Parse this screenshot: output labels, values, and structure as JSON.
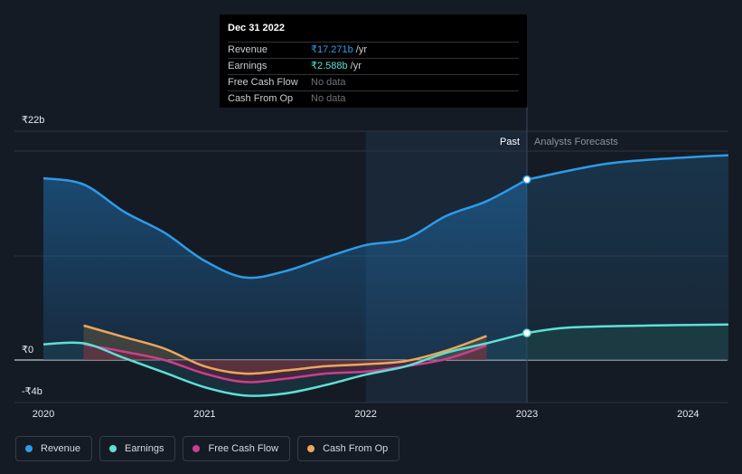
{
  "chart_data": {
    "type": "line",
    "y_unit_prefix": "₹",
    "y_ticks": [
      {
        "value": 22,
        "label": "₹22b"
      },
      {
        "value": 0,
        "label": "₹0"
      },
      {
        "value": -4,
        "label": "-₹4b"
      }
    ],
    "ylim": [
      -4,
      22
    ],
    "xlim": [
      2020,
      2024.25
    ],
    "x_ticks": [
      {
        "value": 2020,
        "label": "2020"
      },
      {
        "value": 2021,
        "label": "2021"
      },
      {
        "value": 2022,
        "label": "2022"
      },
      {
        "value": 2023,
        "label": "2023"
      },
      {
        "value": 2024,
        "label": "2024"
      }
    ],
    "past_label": "Past",
    "forecast_label": "Analysts Forecasts",
    "past_range": [
      2022.0,
      2023.0
    ],
    "divider_x": 2023.0,
    "series": [
      {
        "name": "Revenue",
        "color": "#2d9be8",
        "points": [
          [
            2020.0,
            17.4
          ],
          [
            2020.25,
            16.8
          ],
          [
            2020.5,
            14.2
          ],
          [
            2020.75,
            12.2
          ],
          [
            2021.0,
            9.5
          ],
          [
            2021.25,
            7.9
          ],
          [
            2021.5,
            8.5
          ],
          [
            2021.75,
            9.8
          ],
          [
            2022.0,
            11.0
          ],
          [
            2022.25,
            11.6
          ],
          [
            2022.5,
            13.8
          ],
          [
            2022.75,
            15.2
          ],
          [
            2023.0,
            17.271
          ]
        ],
        "forecast": [
          [
            2023.0,
            17.271
          ],
          [
            2023.5,
            18.8
          ],
          [
            2024.0,
            19.4
          ],
          [
            2024.25,
            19.6
          ]
        ]
      },
      {
        "name": "Earnings",
        "color": "#5ee0d4",
        "points": [
          [
            2020.0,
            1.5
          ],
          [
            2020.25,
            1.6
          ],
          [
            2020.5,
            0.2
          ],
          [
            2020.75,
            -1.2
          ],
          [
            2021.0,
            -2.6
          ],
          [
            2021.25,
            -3.4
          ],
          [
            2021.5,
            -3.2
          ],
          [
            2021.75,
            -2.4
          ],
          [
            2022.0,
            -1.4
          ],
          [
            2022.25,
            -0.6
          ],
          [
            2022.5,
            0.7
          ],
          [
            2022.75,
            1.6
          ],
          [
            2023.0,
            2.588
          ]
        ],
        "forecast": [
          [
            2023.0,
            2.588
          ],
          [
            2023.25,
            3.1
          ],
          [
            2023.75,
            3.3
          ],
          [
            2024.25,
            3.4
          ]
        ]
      },
      {
        "name": "Free Cash Flow",
        "color": "#c9408d",
        "points": [
          [
            2020.25,
            1.5
          ],
          [
            2020.5,
            0.8
          ],
          [
            2020.75,
            0.0
          ],
          [
            2021.0,
            -1.3
          ],
          [
            2021.25,
            -2.1
          ],
          [
            2021.5,
            -1.8
          ],
          [
            2021.75,
            -1.3
          ],
          [
            2022.0,
            -1.1
          ],
          [
            2022.25,
            -0.6
          ],
          [
            2022.5,
            0.1
          ],
          [
            2022.75,
            1.4
          ]
        ]
      },
      {
        "name": "Cash From Op",
        "color": "#eaa75b",
        "points": [
          [
            2020.25,
            3.3
          ],
          [
            2020.5,
            2.2
          ],
          [
            2020.75,
            1.1
          ],
          [
            2021.0,
            -0.6
          ],
          [
            2021.25,
            -1.3
          ],
          [
            2021.5,
            -1.0
          ],
          [
            2021.75,
            -0.6
          ],
          [
            2022.0,
            -0.4
          ],
          [
            2022.25,
            -0.1
          ],
          [
            2022.5,
            0.9
          ],
          [
            2022.75,
            2.3
          ]
        ]
      }
    ]
  },
  "tooltip": {
    "date": "Dec 31 2022",
    "rows": [
      {
        "label": "Revenue",
        "value": "₹17.271b",
        "unit": "/yr",
        "color": "#2d9be8"
      },
      {
        "label": "Earnings",
        "value": "₹2.588b",
        "unit": "/yr",
        "color": "#5ee0d4"
      },
      {
        "label": "Free Cash Flow",
        "value": "No data",
        "unit": "",
        "color": ""
      },
      {
        "label": "Cash From Op",
        "value": "No data",
        "unit": "",
        "color": ""
      }
    ]
  },
  "legend": [
    {
      "label": "Revenue",
      "color": "#2d9be8"
    },
    {
      "label": "Earnings",
      "color": "#5ee0d4"
    },
    {
      "label": "Free Cash Flow",
      "color": "#c9408d"
    },
    {
      "label": "Cash From Op",
      "color": "#eaa75b"
    }
  ]
}
